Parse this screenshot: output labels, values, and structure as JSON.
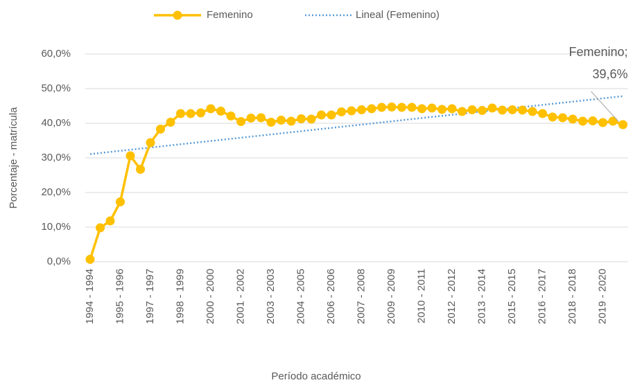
{
  "chart_data": {
    "type": "line",
    "x_label": "Período académico",
    "y_label": "Porcentaje - matrícula",
    "categories": [
      "1994 - 1994",
      null,
      null,
      "1995 - 1996",
      null,
      null,
      "1997 - 1997",
      null,
      null,
      "1998 - 1999",
      null,
      null,
      "2000 - 2000",
      null,
      null,
      "2001 - 2002",
      null,
      null,
      "2003 - 2003",
      null,
      null,
      "2004 - 2005",
      null,
      null,
      "2006 - 2006",
      null,
      null,
      "2007 - 2008",
      null,
      null,
      "2009 - 2009",
      null,
      null,
      "2010 - 2011",
      null,
      null,
      "2012 - 2012",
      null,
      null,
      "2013 - 2014",
      null,
      null,
      "2015 - 2015",
      null,
      null,
      "2016 - 2017",
      null,
      null,
      "2018 - 2018",
      null,
      null,
      "2019 - 2020",
      null,
      null
    ],
    "series": [
      {
        "name": "Femenino",
        "color": "#ffc000",
        "values": [
          0.7,
          9.8,
          11.8,
          17.3,
          30.6,
          26.7,
          34.4,
          38.3,
          40.3,
          42.8,
          42.8,
          43.0,
          44.2,
          43.5,
          42.1,
          40.5,
          41.5,
          41.6,
          40.3,
          40.9,
          40.6,
          41.3,
          41.2,
          42.4,
          42.4,
          43.3,
          43.6,
          43.9,
          44.2,
          44.6,
          44.7,
          44.6,
          44.6,
          44.2,
          44.4,
          44.0,
          44.2,
          43.4,
          43.9,
          43.7,
          44.4,
          43.8,
          43.9,
          43.8,
          43.4,
          42.8,
          41.8,
          41.6,
          41.2,
          40.6,
          40.7,
          40.2,
          40.6,
          39.6
        ],
        "value_labels": [
          null,
          null,
          null,
          null,
          null,
          null,
          null,
          null,
          null,
          null,
          null,
          null,
          null,
          null,
          null,
          null,
          null,
          null,
          null,
          null,
          null,
          null,
          null,
          null,
          null,
          null,
          null,
          null,
          null,
          null,
          null,
          null,
          null,
          null,
          null,
          null,
          null,
          null,
          null,
          null,
          null,
          null,
          null,
          null,
          null,
          null,
          null,
          null,
          null,
          null,
          null,
          null,
          null,
          "Femenino;\n39,6%"
        ]
      }
    ],
    "trendline": {
      "name": "Lineal (Femenino)",
      "color": "#5b9bd5",
      "type": "linear"
    },
    "ylim": [
      0,
      60
    ],
    "yticks": [
      {
        "value": 0,
        "label": "0,0%"
      },
      {
        "value": 10,
        "label": "10,0%"
      },
      {
        "value": 20,
        "label": "20,0%"
      },
      {
        "value": 30,
        "label": "30,0%"
      },
      {
        "value": 40,
        "label": "40,0%"
      },
      {
        "value": 50,
        "label": "50,0%"
      },
      {
        "value": 60,
        "label": "60,0%"
      }
    ],
    "grid": true,
    "legend": "top"
  }
}
